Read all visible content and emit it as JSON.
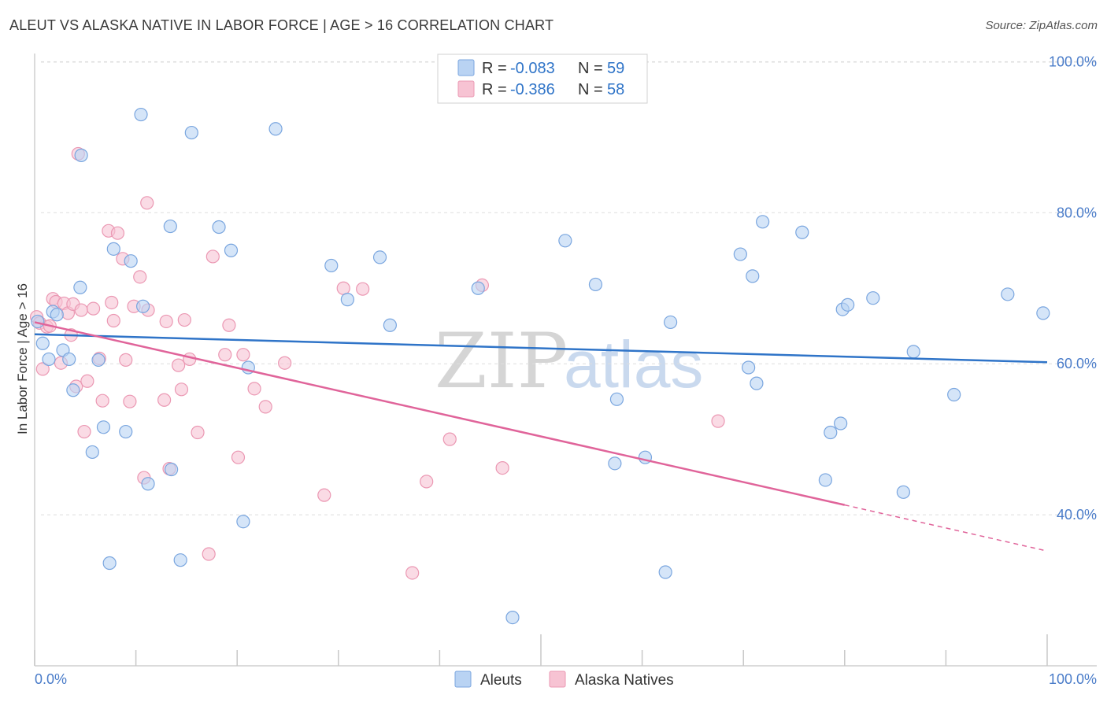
{
  "title": "ALEUT VS ALASKA NATIVE IN LABOR FORCE | AGE > 16 CORRELATION CHART",
  "source": "Source: ZipAtlas.com",
  "watermark": {
    "part1": "ZIP",
    "part2": "atlas"
  },
  "colors": {
    "blue_fill": "#b9d3f3",
    "blue_stroke": "#7aa6df",
    "blue_line": "#2f74c8",
    "pink_fill": "#f7c3d3",
    "pink_stroke": "#eb98b3",
    "pink_line": "#e0649a",
    "label_blue": "#4a7cc9",
    "grid": "#dddddd"
  },
  "stats": {
    "rows": [
      {
        "r_label": "R = ",
        "r_value": "-0.083",
        "n_label": "N = ",
        "n_value": "59"
      },
      {
        "r_label": "R = ",
        "r_value": "-0.386",
        "n_label": "N = ",
        "n_value": "58"
      }
    ]
  },
  "chart_data": {
    "type": "scatter",
    "title": "ALEUT VS ALASKA NATIVE IN LABOR FORCE | AGE > 16 CORRELATION CHART",
    "xlabel": "",
    "ylabel": "In Labor Force | Age > 16",
    "xlim": [
      0,
      100
    ],
    "ylim": [
      20,
      104
    ],
    "x_tick_labels": [
      "0.0%",
      "100.0%"
    ],
    "y_ticks": [
      40,
      60,
      80,
      100
    ],
    "y_tick_labels": [
      "40.0%",
      "60.0%",
      "80.0%",
      "100.0%"
    ],
    "grid": true,
    "legend_position": "bottom",
    "series": [
      {
        "name": "Aleuts",
        "r": -0.083,
        "n": 59,
        "trend": {
          "x0": 0,
          "y0": 63.9,
          "x1": 100,
          "y1": 60.2
        },
        "points": [
          [
            0.3,
            65.6
          ],
          [
            0.8,
            62.7
          ],
          [
            1.4,
            60.6
          ],
          [
            1.8,
            66.9
          ],
          [
            2.2,
            66.5
          ],
          [
            2.8,
            61.8
          ],
          [
            3.4,
            60.6
          ],
          [
            3.8,
            56.5
          ],
          [
            4.5,
            70.1
          ],
          [
            4.6,
            87.6
          ],
          [
            5.7,
            48.3
          ],
          [
            6.3,
            60.5
          ],
          [
            6.8,
            51.6
          ],
          [
            7.4,
            33.6
          ],
          [
            7.8,
            75.2
          ],
          [
            9.0,
            51.0
          ],
          [
            9.5,
            73.6
          ],
          [
            10.5,
            93.0
          ],
          [
            10.7,
            67.6
          ],
          [
            11.2,
            44.1
          ],
          [
            13.5,
            46.0
          ],
          [
            13.4,
            78.2
          ],
          [
            14.4,
            34.0
          ],
          [
            15.5,
            90.6
          ],
          [
            18.2,
            78.1
          ],
          [
            19.4,
            75.0
          ],
          [
            20.6,
            39.1
          ],
          [
            21.1,
            59.5
          ],
          [
            23.8,
            91.1
          ],
          [
            29.3,
            73.0
          ],
          [
            30.9,
            68.5
          ],
          [
            34.1,
            74.1
          ],
          [
            35.1,
            65.1
          ],
          [
            43.8,
            70.0
          ],
          [
            47.2,
            26.4
          ],
          [
            52.4,
            76.3
          ],
          [
            55.4,
            70.5
          ],
          [
            57.3,
            46.8
          ],
          [
            57.5,
            55.3
          ],
          [
            60.3,
            47.6
          ],
          [
            62.3,
            32.4
          ],
          [
            62.8,
            65.5
          ],
          [
            69.7,
            74.5
          ],
          [
            70.9,
            71.6
          ],
          [
            70.5,
            59.5
          ],
          [
            71.3,
            57.4
          ],
          [
            71.9,
            78.8
          ],
          [
            75.8,
            77.4
          ],
          [
            78.6,
            50.9
          ],
          [
            78.1,
            44.6
          ],
          [
            79.6,
            52.1
          ],
          [
            79.8,
            67.2
          ],
          [
            80.3,
            67.8
          ],
          [
            82.8,
            68.7
          ],
          [
            85.8,
            43.0
          ],
          [
            86.8,
            61.6
          ],
          [
            90.8,
            55.9
          ],
          [
            96.1,
            69.2
          ],
          [
            99.6,
            66.7
          ]
        ]
      },
      {
        "name": "Alaska Natives",
        "r": -0.386,
        "n": 58,
        "trend": {
          "x0": 0,
          "y0": 65.5,
          "x1": 80,
          "y1": 41.3
        },
        "trend_dashed": {
          "x0": 80,
          "y0": 41.3,
          "x1": 100,
          "y1": 35.2
        },
        "points": [
          [
            0.2,
            66.2
          ],
          [
            0.5,
            65.4
          ],
          [
            0.8,
            59.3
          ],
          [
            1.2,
            64.9
          ],
          [
            1.5,
            65.0
          ],
          [
            1.8,
            68.6
          ],
          [
            2.1,
            68.2
          ],
          [
            2.6,
            60.1
          ],
          [
            2.9,
            68.0
          ],
          [
            3.3,
            66.7
          ],
          [
            3.6,
            63.8
          ],
          [
            3.8,
            67.9
          ],
          [
            4.1,
            57.0
          ],
          [
            4.6,
            67.1
          ],
          [
            4.9,
            51.0
          ],
          [
            5.2,
            57.7
          ],
          [
            5.8,
            67.3
          ],
          [
            6.4,
            60.7
          ],
          [
            6.7,
            55.1
          ],
          [
            7.3,
            77.6
          ],
          [
            7.8,
            65.7
          ],
          [
            8.2,
            77.3
          ],
          [
            8.7,
            73.9
          ],
          [
            9.0,
            60.5
          ],
          [
            9.4,
            55.0
          ],
          [
            9.8,
            67.6
          ],
          [
            10.4,
            71.5
          ],
          [
            10.8,
            44.9
          ],
          [
            11.2,
            67.1
          ],
          [
            12.8,
            55.2
          ],
          [
            13.0,
            65.6
          ],
          [
            13.3,
            46.1
          ],
          [
            14.2,
            59.8
          ],
          [
            14.5,
            56.6
          ],
          [
            14.8,
            65.8
          ],
          [
            15.3,
            60.6
          ],
          [
            16.1,
            50.9
          ],
          [
            17.2,
            34.8
          ],
          [
            17.6,
            74.2
          ],
          [
            18.8,
            61.2
          ],
          [
            19.2,
            65.1
          ],
          [
            20.1,
            47.6
          ],
          [
            20.6,
            61.2
          ],
          [
            21.7,
            56.7
          ],
          [
            22.8,
            54.3
          ],
          [
            24.7,
            60.1
          ],
          [
            28.6,
            42.6
          ],
          [
            30.5,
            70.0
          ],
          [
            32.4,
            69.9
          ],
          [
            37.3,
            32.3
          ],
          [
            38.7,
            44.4
          ],
          [
            41.0,
            50.0
          ],
          [
            44.2,
            70.4
          ],
          [
            46.2,
            46.2
          ],
          [
            67.5,
            52.4
          ],
          [
            4.3,
            87.8
          ],
          [
            11.1,
            81.3
          ],
          [
            7.6,
            68.1
          ]
        ]
      }
    ]
  },
  "legend": {
    "items": [
      "Aleuts",
      "Alaska Natives"
    ]
  }
}
